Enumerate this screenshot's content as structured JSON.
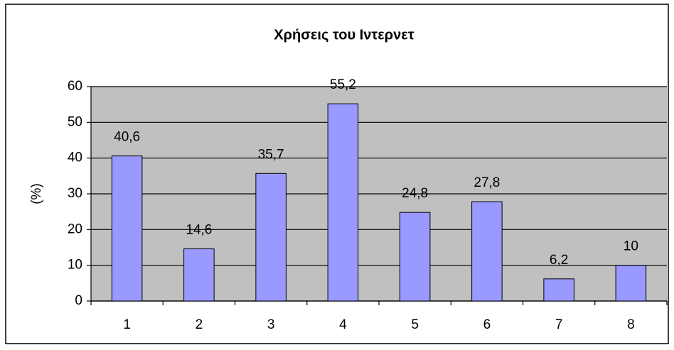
{
  "chart_data": {
    "type": "bar",
    "title": "Χρήσεις του Ιντερνετ",
    "y_label": "(%)",
    "categories": [
      "1",
      "2",
      "3",
      "4",
      "5",
      "6",
      "7",
      "8"
    ],
    "values": [
      40.6,
      14.6,
      35.7,
      55.2,
      24.8,
      27.8,
      6.2,
      10
    ],
    "value_labels": [
      "40,6",
      "14,6",
      "35,7",
      "55,2",
      "24,8",
      "27,8",
      "6,2",
      "10"
    ],
    "color": "#9999ff",
    "ylim": [
      0,
      60
    ],
    "yticks": [
      0,
      10,
      20,
      30,
      40,
      50,
      60
    ],
    "grid": true
  }
}
